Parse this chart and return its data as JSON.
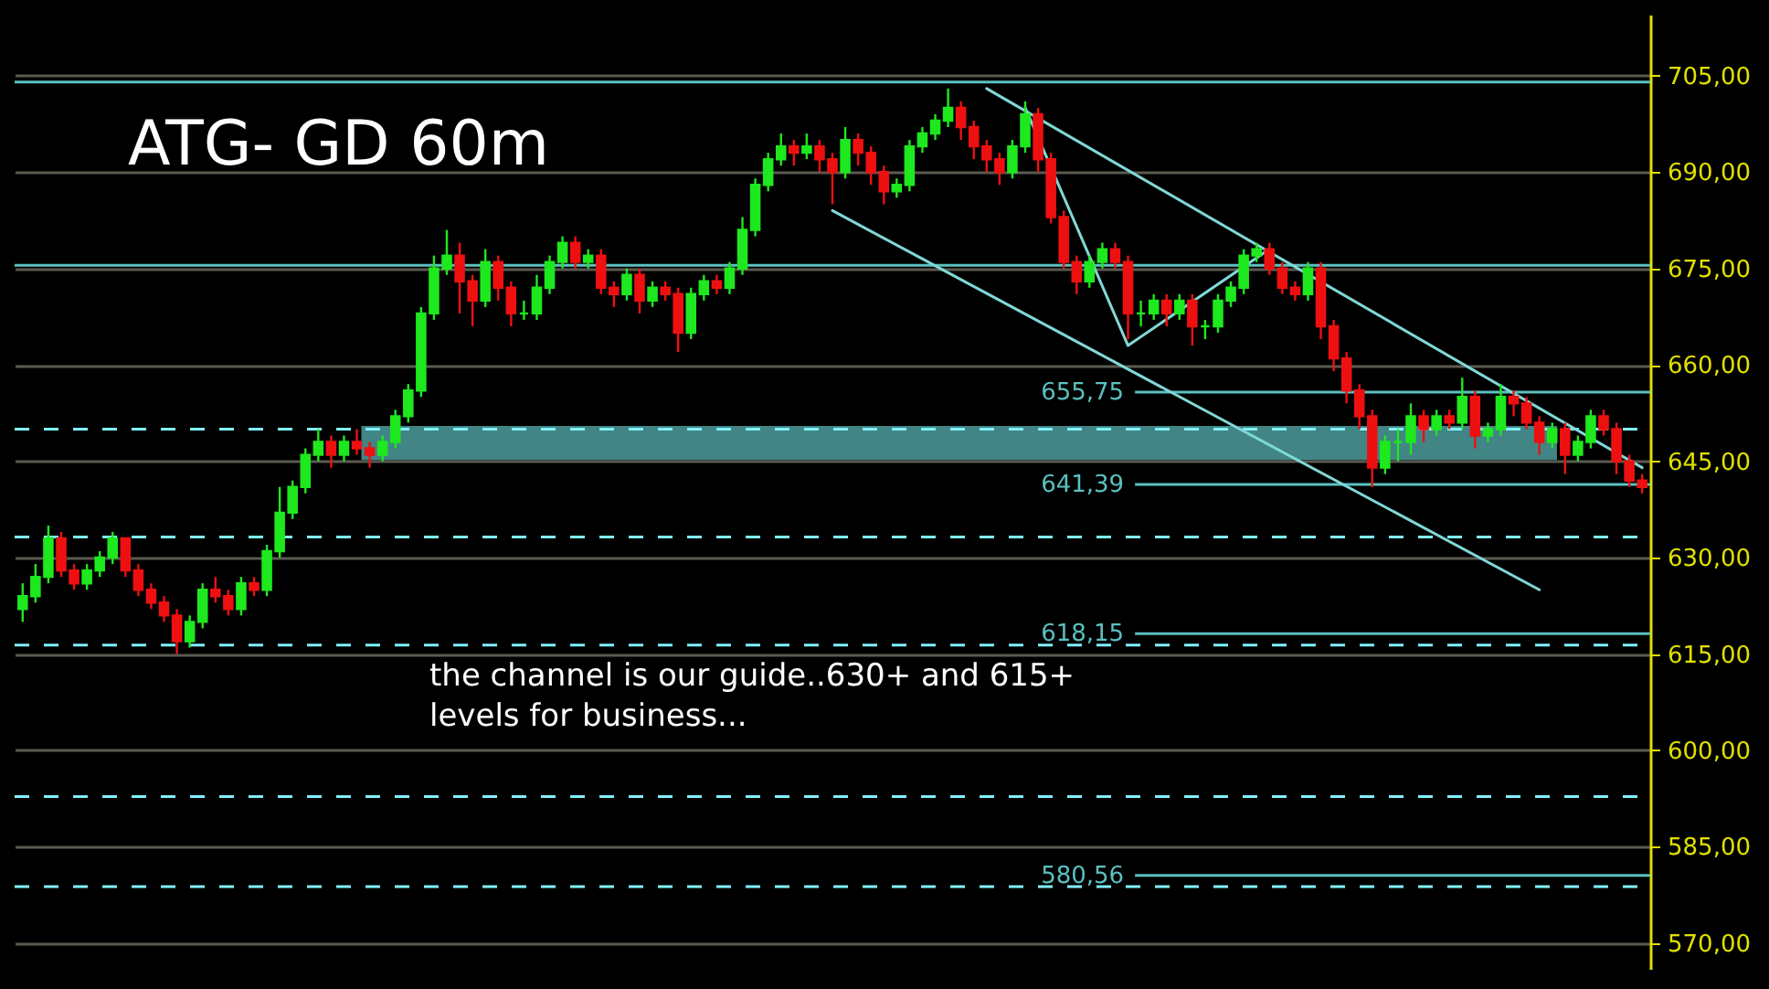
{
  "chart_data": {
    "type": "candlestick",
    "title": "ATG- GD 60m",
    "annotations": [
      "the channel is our guide..630+ and 615+\nlevels for business..."
    ],
    "categories": [
      null,
      null,
      null,
      null,
      null,
      null,
      null,
      null,
      null,
      null,
      null,
      null,
      null,
      null,
      null,
      null,
      null,
      null,
      null,
      null,
      null,
      null,
      null,
      null,
      null,
      null,
      null,
      null,
      null,
      null,
      null,
      null,
      null,
      null,
      null,
      null,
      null,
      null,
      null,
      null,
      null,
      null,
      null,
      null,
      null,
      null,
      null,
      null,
      null,
      null,
      null,
      null,
      null,
      null,
      null,
      null,
      null,
      null,
      null,
      null,
      null,
      null,
      null,
      null,
      null,
      null,
      null,
      null,
      null,
      null,
      null,
      null,
      null,
      null,
      null,
      null,
      null,
      null,
      null,
      null,
      null,
      null,
      null,
      null,
      null,
      null,
      null,
      null,
      null,
      null,
      null,
      null,
      null,
      null,
      null,
      null,
      null,
      null,
      null,
      null,
      null,
      null,
      null,
      null,
      null,
      null,
      null,
      null,
      null,
      null,
      null,
      null,
      null,
      null,
      null,
      null,
      null,
      null,
      null,
      null,
      null,
      null,
      null,
      null,
      null,
      null,
      null
    ],
    "ohlc": [
      [
        622,
        626,
        620,
        624
      ],
      [
        624,
        629,
        623,
        627
      ],
      [
        627,
        635,
        626,
        633
      ],
      [
        633,
        634,
        627,
        628
      ],
      [
        628,
        629,
        625,
        626
      ],
      [
        626,
        629,
        625,
        628
      ],
      [
        628,
        631,
        627,
        630
      ],
      [
        630,
        634,
        629,
        633
      ],
      [
        633,
        633,
        627,
        628
      ],
      [
        628,
        629,
        624,
        625
      ],
      [
        625,
        626,
        622,
        623
      ],
      [
        623,
        624,
        620,
        621
      ],
      [
        621,
        622,
        615,
        617
      ],
      [
        617,
        621,
        616,
        620
      ],
      [
        620,
        626,
        619,
        625
      ],
      [
        625,
        627,
        623,
        624
      ],
      [
        624,
        625,
        621,
        622
      ],
      [
        622,
        627,
        621,
        626
      ],
      [
        626,
        627,
        624,
        625
      ],
      [
        625,
        632,
        624,
        631
      ],
      [
        631,
        641,
        630,
        637
      ],
      [
        637,
        642,
        636,
        641
      ],
      [
        641,
        647,
        640,
        646
      ],
      [
        646,
        650,
        645,
        648
      ],
      [
        648,
        649,
        644,
        646
      ],
      [
        646,
        649,
        645,
        648
      ],
      [
        648,
        650,
        646,
        647
      ],
      [
        647,
        648,
        644,
        646
      ],
      [
        646,
        649,
        645,
        648
      ],
      [
        648,
        653,
        647,
        652
      ],
      [
        652,
        657,
        651,
        656
      ],
      [
        656,
        669,
        655,
        668
      ],
      [
        668,
        677,
        667,
        675
      ],
      [
        675,
        681,
        674,
        677
      ],
      [
        677,
        679,
        668,
        673
      ],
      [
        673,
        674,
        666,
        670
      ],
      [
        670,
        678,
        669,
        676
      ],
      [
        676,
        677,
        670,
        672
      ],
      [
        672,
        673,
        666,
        668
      ],
      [
        668,
        670,
        667,
        668
      ],
      [
        668,
        674,
        667,
        672
      ],
      [
        672,
        677,
        671,
        676
      ],
      [
        676,
        680,
        675,
        679
      ],
      [
        679,
        680,
        675,
        676
      ],
      [
        676,
        678,
        675,
        677
      ],
      [
        677,
        678,
        671,
        672
      ],
      [
        672,
        673,
        669,
        671
      ],
      [
        671,
        675,
        670,
        674
      ],
      [
        674,
        675,
        668,
        670
      ],
      [
        670,
        673,
        669,
        672
      ],
      [
        672,
        673,
        670,
        671
      ],
      [
        671,
        672,
        662,
        665
      ],
      [
        665,
        672,
        664,
        671
      ],
      [
        671,
        674,
        670,
        673
      ],
      [
        673,
        674,
        671,
        672
      ],
      [
        672,
        676,
        671,
        675
      ],
      [
        675,
        683,
        674,
        681
      ],
      [
        681,
        689,
        680,
        688
      ],
      [
        688,
        693,
        687,
        692
      ],
      [
        692,
        696,
        691,
        694
      ],
      [
        694,
        695,
        691,
        693
      ],
      [
        693,
        696,
        692,
        694
      ],
      [
        694,
        695,
        690,
        692
      ],
      [
        692,
        693,
        685,
        690
      ],
      [
        690,
        697,
        689,
        695
      ],
      [
        695,
        696,
        691,
        693
      ],
      [
        693,
        694,
        688,
        690
      ],
      [
        690,
        691,
        685,
        687
      ],
      [
        687,
        689,
        686,
        688
      ],
      [
        688,
        695,
        687,
        694
      ],
      [
        694,
        697,
        693,
        696
      ],
      [
        696,
        699,
        695,
        698
      ],
      [
        698,
        703,
        697,
        700
      ],
      [
        700,
        701,
        695,
        697
      ],
      [
        697,
        698,
        692,
        694
      ],
      [
        694,
        695,
        690,
        692
      ],
      [
        692,
        693,
        688,
        690
      ],
      [
        690,
        695,
        689,
        694
      ],
      [
        694,
        701,
        693,
        699
      ],
      [
        699,
        700,
        690,
        692
      ],
      [
        692,
        693,
        682,
        683
      ],
      [
        683,
        684,
        675,
        676
      ],
      [
        676,
        677,
        671,
        673
      ],
      [
        673,
        677,
        672,
        676
      ],
      [
        676,
        679,
        675,
        678
      ],
      [
        678,
        679,
        675,
        676
      ],
      [
        676,
        677,
        664,
        668
      ],
      [
        668,
        670,
        666,
        668
      ],
      [
        668,
        671,
        667,
        670
      ],
      [
        670,
        671,
        666,
        668
      ],
      [
        668,
        671,
        667,
        670
      ],
      [
        670,
        671,
        663,
        666
      ],
      [
        666,
        667,
        664,
        666
      ],
      [
        666,
        671,
        665,
        670
      ],
      [
        670,
        673,
        669,
        672
      ],
      [
        672,
        678,
        671,
        677
      ],
      [
        677,
        679,
        676,
        678
      ],
      [
        678,
        679,
        674,
        675
      ],
      [
        675,
        676,
        671,
        672
      ],
      [
        672,
        673,
        670,
        671
      ],
      [
        671,
        676,
        670,
        675
      ],
      [
        675,
        676,
        664,
        666
      ],
      [
        666,
        667,
        659,
        661
      ],
      [
        661,
        662,
        654,
        656
      ],
      [
        656,
        657,
        650,
        652
      ],
      [
        652,
        653,
        641,
        644
      ],
      [
        644,
        649,
        643,
        648
      ],
      [
        648,
        650,
        645,
        648
      ],
      [
        648,
        654,
        646,
        652
      ],
      [
        652,
        653,
        648,
        650
      ],
      [
        650,
        653,
        649,
        652
      ],
      [
        652,
        653,
        650,
        651
      ],
      [
        651,
        658,
        650,
        655
      ],
      [
        655,
        656,
        647,
        649
      ],
      [
        649,
        651,
        648,
        650
      ],
      [
        650,
        657,
        649,
        655
      ],
      [
        655,
        656,
        652,
        654
      ],
      [
        654,
        655,
        650,
        651
      ],
      [
        651,
        652,
        646,
        648
      ],
      [
        648,
        651,
        647,
        650
      ],
      [
        650,
        651,
        643,
        646
      ],
      [
        646,
        649,
        645,
        648
      ],
      [
        648,
        653,
        647,
        652
      ],
      [
        652,
        653,
        649,
        650
      ],
      [
        650,
        651,
        643,
        645
      ],
      [
        645,
        646,
        641,
        642
      ],
      [
        642,
        643,
        640,
        641
      ]
    ],
    "series": [
      {
        "type": "line",
        "color": "#80d8d8",
        "values": [
          null,
          null,
          null,
          null,
          null,
          null,
          null,
          null,
          null,
          null,
          null,
          null,
          null,
          null,
          null,
          null,
          null,
          null,
          null,
          null,
          null,
          null,
          null,
          null,
          null,
          null,
          null,
          null,
          null,
          null,
          null,
          null,
          null,
          null,
          null,
          null,
          null,
          null,
          null,
          null,
          null,
          null,
          null,
          null,
          null,
          null,
          null,
          null,
          null,
          null,
          null,
          null,
          null,
          null,
          null,
          null,
          null,
          null,
          null,
          null,
          null,
          null,
          null,
          null,
          null,
          null,
          null,
          null,
          null,
          null,
          null,
          null,
          null,
          null,
          null,
          703,
          null,
          null,
          null,
          null,
          null,
          null,
          null,
          null,
          null,
          null,
          null,
          null,
          null,
          null,
          null,
          null,
          null,
          null,
          null,
          null,
          null,
          null,
          null,
          null,
          null,
          null,
          null,
          null,
          null,
          null,
          null,
          null,
          null,
          null,
          null,
          null,
          null,
          null,
          null,
          null,
          null,
          null,
          null,
          null,
          null,
          null,
          null,
          null,
          null,
          null,
          644
        ]
      },
      {
        "type": "line",
        "color": "#80d8d8",
        "values": [
          null,
          null,
          null,
          null,
          null,
          null,
          null,
          null,
          null,
          null,
          null,
          null,
          null,
          null,
          null,
          null,
          null,
          null,
          null,
          null,
          null,
          null,
          null,
          null,
          null,
          null,
          null,
          null,
          null,
          null,
          null,
          null,
          null,
          null,
          null,
          null,
          null,
          null,
          null,
          null,
          null,
          null,
          null,
          null,
          null,
          null,
          null,
          null,
          null,
          null,
          null,
          null,
          null,
          null,
          null,
          null,
          null,
          null,
          null,
          null,
          null,
          null,
          null,
          684,
          null,
          null,
          null,
          null,
          null,
          null,
          null,
          null,
          null,
          null,
          null,
          null,
          null,
          null,
          null,
          null,
          null,
          null,
          null,
          null,
          null,
          null,
          null,
          null,
          null,
          null,
          null,
          null,
          null,
          null,
          null,
          null,
          null,
          null,
          null,
          null,
          null,
          null,
          null,
          null,
          null,
          null,
          null,
          null,
          null,
          null,
          null,
          null,
          null,
          null,
          null,
          null,
          null,
          null,
          625,
          null,
          null,
          null,
          null,
          null,
          null,
          null,
          null
        ]
      },
      {
        "type": "line",
        "color": "#80d8d8",
        "values": [
          null,
          null,
          null,
          null,
          null,
          null,
          null,
          null,
          null,
          null,
          null,
          null,
          null,
          null,
          null,
          null,
          null,
          null,
          null,
          null,
          null,
          null,
          null,
          null,
          null,
          null,
          null,
          null,
          null,
          null,
          null,
          null,
          null,
          null,
          null,
          null,
          null,
          null,
          null,
          null,
          null,
          null,
          null,
          null,
          null,
          null,
          null,
          null,
          null,
          null,
          null,
          null,
          null,
          null,
          null,
          null,
          null,
          null,
          null,
          null,
          null,
          null,
          null,
          null,
          null,
          null,
          null,
          null,
          null,
          null,
          null,
          null,
          null,
          null,
          null,
          null,
          null,
          null,
          700,
          null,
          null,
          null,
          null,
          null,
          null,
          null,
          663,
          null,
          null,
          null,
          null,
          null,
          null,
          null,
          null,
          null,
          null,
          678,
          null,
          null,
          null,
          null,
          null,
          null,
          null,
          null,
          null,
          null,
          null,
          null,
          null,
          null,
          null,
          null,
          null,
          null,
          null,
          null,
          null,
          null,
          null,
          null,
          null,
          null,
          null,
          null,
          null
        ]
      }
    ],
    "ylim": [
      566,
      714.5
    ],
    "yticks": [
      {
        "value": 570,
        "label": "570,00"
      },
      {
        "value": 585,
        "label": "585,00"
      },
      {
        "value": 600,
        "label": "600,00"
      },
      {
        "value": 615,
        "label": "615,00"
      },
      {
        "value": 630,
        "label": "630,00"
      },
      {
        "value": 645,
        "label": "645,00"
      },
      {
        "value": 660,
        "label": "660,00"
      },
      {
        "value": 675,
        "label": "675,00"
      },
      {
        "value": 690,
        "label": "690,00"
      },
      {
        "value": 705,
        "label": "705,00"
      }
    ],
    "grid": "y",
    "tick_labels": "y",
    "ref_lines": [
      {
        "axis": "y",
        "value": 704,
        "color": "#5cc0c0",
        "line_style": "solid"
      },
      {
        "axis": "y",
        "value": 675.5,
        "color": "#5cc0c0",
        "line_style": "solid"
      },
      {
        "axis": "y",
        "value": 655.75,
        "label": "655,75",
        "color": "#5cc0c0",
        "line_style": "solid"
      },
      {
        "axis": "y",
        "value": 641.39,
        "label": "641,39",
        "color": "#5cc0c0",
        "line_style": "solid"
      },
      {
        "axis": "y",
        "value": 618.15,
        "label": "618,15",
        "color": "#5cc0c0",
        "line_style": "solid"
      },
      {
        "axis": "y",
        "value": 580.56,
        "label": "580,56",
        "color": "#5cc0c0",
        "line_style": "solid"
      },
      {
        "axis": "y",
        "value": 650,
        "color": "#80f0ff",
        "line_style": "dashed"
      },
      {
        "axis": "y",
        "value": 633.2,
        "color": "#80f0ff",
        "line_style": "dashed"
      },
      {
        "axis": "y",
        "value": 616.4,
        "color": "#80f0ff",
        "line_style": "dashed"
      },
      {
        "axis": "y",
        "value": 592.8,
        "color": "#80f0ff",
        "line_style": "dashed"
      },
      {
        "axis": "y",
        "value": 578.8,
        "color": "#80f0ff",
        "line_style": "dashed"
      }
    ],
    "bands": [
      {
        "axis": "y",
        "from": 645.2,
        "to": 650.5,
        "color": "#418585"
      }
    ]
  }
}
